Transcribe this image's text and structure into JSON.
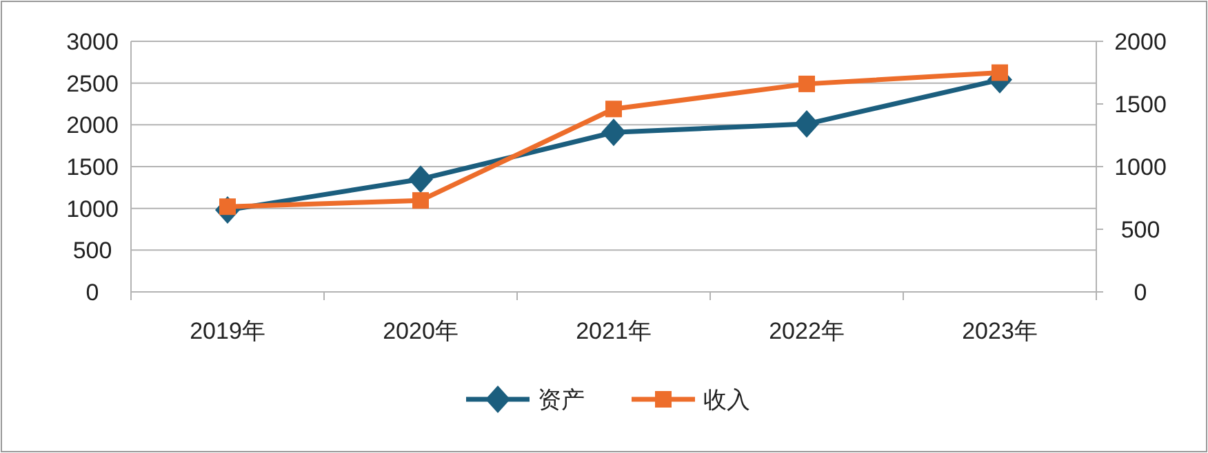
{
  "chart_data": {
    "type": "line",
    "categories": [
      "2019年",
      "2020年",
      "2021年",
      "2022年",
      "2023年"
    ],
    "series": [
      {
        "name": "资产",
        "color": "#1b5e7e",
        "values": [
          980,
          1350,
          1910,
          2010,
          2540
        ],
        "marker": "diamond"
      },
      {
        "name": "收入",
        "color": "#ed6d2b",
        "values": [
          680,
          730,
          1460,
          1660,
          1750
        ],
        "marker": "square",
        "axis": "y2"
      }
    ],
    "ylim": [
      0,
      3000
    ],
    "yticks": [
      0,
      500,
      1000,
      1500,
      2000,
      2500,
      3000
    ],
    "y2lim": [
      0,
      2000
    ],
    "y2ticks": [
      0,
      500,
      1000,
      1500,
      2000
    ],
    "grid": "y",
    "legend": "bottom",
    "line_style": "solid"
  }
}
